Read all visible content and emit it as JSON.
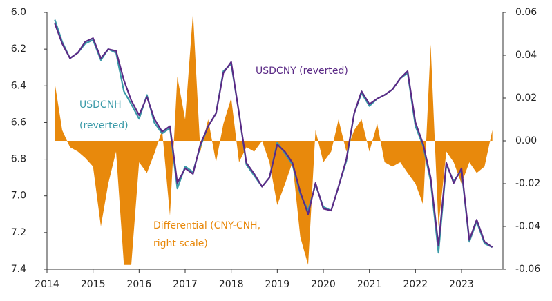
{
  "chart_data": {
    "type": "line",
    "annotations": [
      "USDCNY (reverted)",
      "USDCNH",
      "(reverted)",
      "Differential (CNY-CNH,",
      "right scale)"
    ],
    "x": [
      2014.17,
      2014.33,
      2014.5,
      2014.67,
      2014.83,
      2015,
      2015.17,
      2015.33,
      2015.5,
      2015.67,
      2015.83,
      2016,
      2016.17,
      2016.33,
      2016.5,
      2016.67,
      2016.83,
      2017,
      2017.17,
      2017.33,
      2017.5,
      2017.67,
      2017.83,
      2018,
      2018.17,
      2018.33,
      2018.5,
      2018.67,
      2018.83,
      2019,
      2019.17,
      2019.33,
      2019.5,
      2019.67,
      2019.83,
      2020,
      2020.17,
      2020.33,
      2020.5,
      2020.67,
      2020.83,
      2021,
      2021.17,
      2021.33,
      2021.5,
      2021.67,
      2021.83,
      2022,
      2022.17,
      2022.33,
      2022.5,
      2022.67,
      2022.83,
      2023,
      2023.17,
      2023.33,
      2023.5,
      2023.67
    ],
    "series": [
      {
        "name": "USDCNH",
        "color": "#3a9aa8",
        "axis": "y",
        "values": [
          6.04,
          6.16,
          6.25,
          6.22,
          6.17,
          6.15,
          6.26,
          6.2,
          6.22,
          6.43,
          6.5,
          6.58,
          6.45,
          6.6,
          6.66,
          6.63,
          6.96,
          6.84,
          6.87,
          6.73,
          6.62,
          6.55,
          6.32,
          6.28,
          6.55,
          6.83,
          6.89,
          6.95,
          6.9,
          6.71,
          6.77,
          6.83,
          6.99,
          7.08,
          6.94,
          7.06,
          7.08,
          6.95,
          6.81,
          6.55,
          6.44,
          6.51,
          6.47,
          6.45,
          6.42,
          6.36,
          6.33,
          6.62,
          6.73,
          6.92,
          7.31,
          6.83,
          6.92,
          6.86,
          7.25,
          7.14,
          7.26,
          7.28
        ]
      },
      {
        "name": "USDCNY",
        "color": "#5b2a86",
        "axis": "y",
        "values": [
          6.06,
          6.17,
          6.25,
          6.22,
          6.16,
          6.14,
          6.25,
          6.2,
          6.21,
          6.37,
          6.48,
          6.56,
          6.46,
          6.58,
          6.65,
          6.62,
          6.93,
          6.85,
          6.88,
          6.72,
          6.62,
          6.55,
          6.33,
          6.27,
          6.55,
          6.82,
          6.88,
          6.95,
          6.9,
          6.72,
          6.76,
          6.82,
          6.98,
          7.1,
          6.93,
          7.07,
          7.08,
          6.95,
          6.8,
          6.55,
          6.43,
          6.5,
          6.47,
          6.45,
          6.42,
          6.36,
          6.32,
          6.6,
          6.72,
          6.9,
          7.27,
          6.82,
          6.93,
          6.85,
          7.24,
          7.13,
          7.25,
          7.28
        ]
      },
      {
        "name": "Differential",
        "color": "#e8890c",
        "axis": "y2",
        "fill": true,
        "values": [
          0.027,
          0.005,
          -0.003,
          -0.005,
          -0.008,
          -0.012,
          -0.04,
          -0.02,
          -0.005,
          -0.058,
          -0.058,
          -0.01,
          -0.015,
          -0.006,
          0.005,
          -0.035,
          0.03,
          0.01,
          0.06,
          -0.005,
          0.01,
          -0.01,
          0.008,
          0.02,
          -0.01,
          -0.003,
          -0.005,
          0,
          -0.01,
          -0.03,
          -0.02,
          -0.01,
          -0.045,
          -0.058,
          0.005,
          -0.01,
          -0.005,
          0.01,
          -0.005,
          0.005,
          0.01,
          -0.005,
          0.008,
          -0.01,
          -0.012,
          -0.01,
          -0.015,
          -0.02,
          -0.03,
          0.045,
          -0.04,
          -0.005,
          -0.01,
          -0.02,
          -0.01,
          -0.015,
          -0.012,
          0.005
        ]
      }
    ],
    "xlim": [
      2014,
      2023.9
    ],
    "xticks": [
      2014,
      2015,
      2016,
      2017,
      2018,
      2019,
      2020,
      2021,
      2022,
      2023
    ],
    "ylim": [
      6.0,
      7.4
    ],
    "y_inverted": true,
    "yticks": [
      {
        "value": 6.0,
        "label": "6.0"
      },
      6.2,
      6.4,
      6.6,
      6.8,
      {
        "value": 7.0,
        "label": "7.0"
      },
      7.2,
      7.4
    ],
    "y2lim": [
      -0.06,
      0.06
    ],
    "y2ticks": [
      -0.06,
      -0.04,
      -0.02,
      {
        "value": 0,
        "label": "0.00"
      },
      0.02,
      0.04,
      0.06
    ],
    "grid": false
  }
}
